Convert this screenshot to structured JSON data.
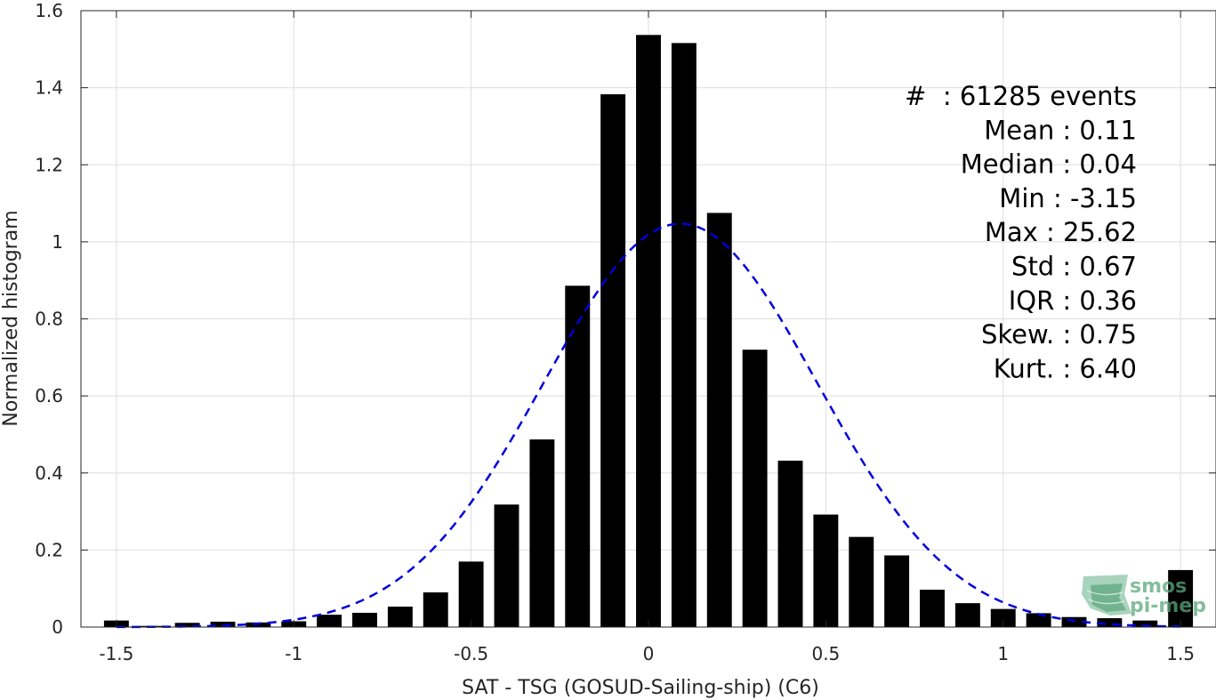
{
  "chart_data": {
    "type": "bar",
    "xlabel": "SAT - TSG (GOSUD-Sailing-ship) (C6)",
    "ylabel": "Normalized histogram",
    "xlim": [
      -1.6,
      1.6
    ],
    "ylim": [
      0,
      1.6
    ],
    "grid": true,
    "xticks": [
      -1.5,
      -1,
      -0.5,
      0,
      0.5,
      1,
      1.5
    ],
    "xtick_labels": [
      "-1.5",
      "-1",
      "-0.5",
      "0",
      "0.5",
      "1",
      "1.5"
    ],
    "yticks": [
      0,
      0.2,
      0.4,
      0.6,
      0.8,
      1,
      1.2,
      1.4,
      1.6
    ],
    "ytick_labels": [
      "0",
      "0.2",
      "0.4",
      "0.6",
      "0.8",
      "1",
      "1.2",
      "1.4",
      "1.6"
    ],
    "bar_width": 0.07,
    "bar_color": "#000000",
    "x": [
      -1.5,
      -1.4,
      -1.3,
      -1.2,
      -1.1,
      -1.0,
      -0.9,
      -0.8,
      -0.7,
      -0.6,
      -0.5,
      -0.4,
      -0.3,
      -0.2,
      -0.1,
      0.0,
      0.1,
      0.2,
      0.3,
      0.4,
      0.5,
      0.6,
      0.7,
      0.8,
      0.9,
      1.0,
      1.1,
      1.2,
      1.3,
      1.4,
      1.5
    ],
    "values": [
      0.017,
      0.003,
      0.011,
      0.014,
      0.012,
      0.015,
      0.032,
      0.037,
      0.053,
      0.09,
      0.17,
      0.318,
      0.487,
      0.886,
      1.383,
      1.537,
      1.516,
      1.075,
      0.72,
      0.432,
      0.292,
      0.234,
      0.186,
      0.097,
      0.062,
      0.047,
      0.036,
      0.026,
      0.023,
      0.017,
      0.148
    ],
    "fit_curve": {
      "type": "gaussian",
      "style": "dashed",
      "color": "#0000dd",
      "mean": 0.09,
      "sd": 0.385,
      "peak": 1.047
    },
    "annotations": [
      "#  : 61285 events",
      "Mean : 0.11",
      "Median : 0.04",
      "Min : -3.15",
      "Max : 25.62",
      "Std : 0.67",
      "IQR : 0.36",
      "Skew. : 0.75",
      "Kurt. : 6.40"
    ]
  },
  "logo": {
    "line1": "smos",
    "line2": "pi-mep",
    "color": "#5aa87c"
  }
}
